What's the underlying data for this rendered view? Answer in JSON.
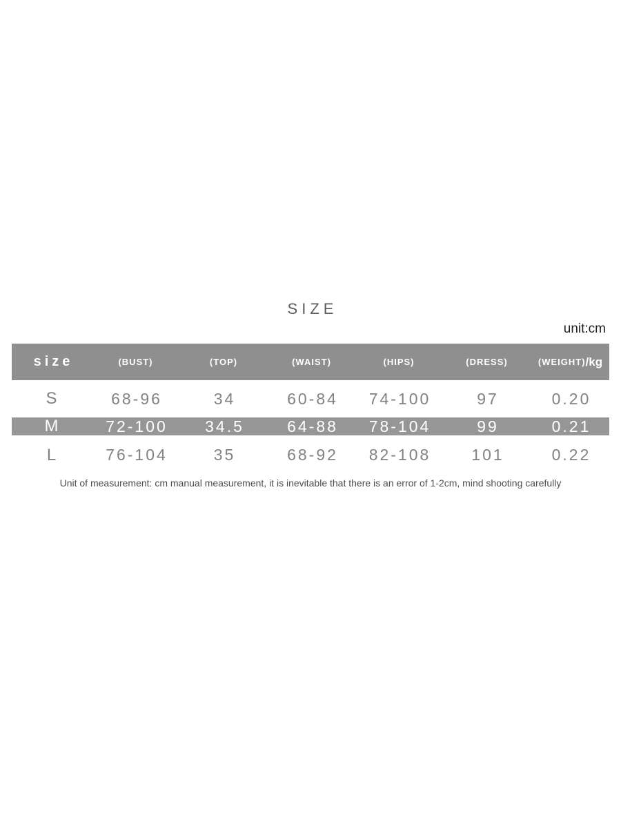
{
  "page": {
    "title": "SIZE",
    "unit_label": "unit:cm",
    "footnote": "Unit of measurement: cm manual measurement, it is inevitable that there is an error of 1-2cm, mind shooting carefully"
  },
  "table": {
    "headers": {
      "size": "size",
      "bust": "(BUST)",
      "top": "(TOP)",
      "waist": "(WAIST)",
      "hips": "(HIPS)",
      "dress": "(DRESS)",
      "weight": "(WEIGHT)",
      "weight_suffix": "/kg"
    },
    "rows": [
      {
        "size": "S",
        "bust": "68-96",
        "top": "34",
        "waist": "60-84",
        "hips": "74-100",
        "dress": "97",
        "weight": "0.20",
        "highlighted": false
      },
      {
        "size": "M",
        "bust": "72-100",
        "top": "34.5",
        "waist": "64-88",
        "hips": "78-104",
        "dress": "99",
        "weight": "0.21",
        "highlighted": true
      },
      {
        "size": "L",
        "bust": "76-104",
        "top": "35",
        "waist": "68-92",
        "hips": "82-108",
        "dress": "101",
        "weight": "0.22",
        "highlighted": false
      }
    ]
  },
  "colors": {
    "header_bg": "#8f8f8f",
    "highlight_row_bg": "#969696",
    "header_text": "#ffffff",
    "data_text": "#828282",
    "title_text": "#5c5c5c",
    "unit_text": "#1f1f1f",
    "footnote_text": "#4c4c4c",
    "background": "#ffffff"
  }
}
